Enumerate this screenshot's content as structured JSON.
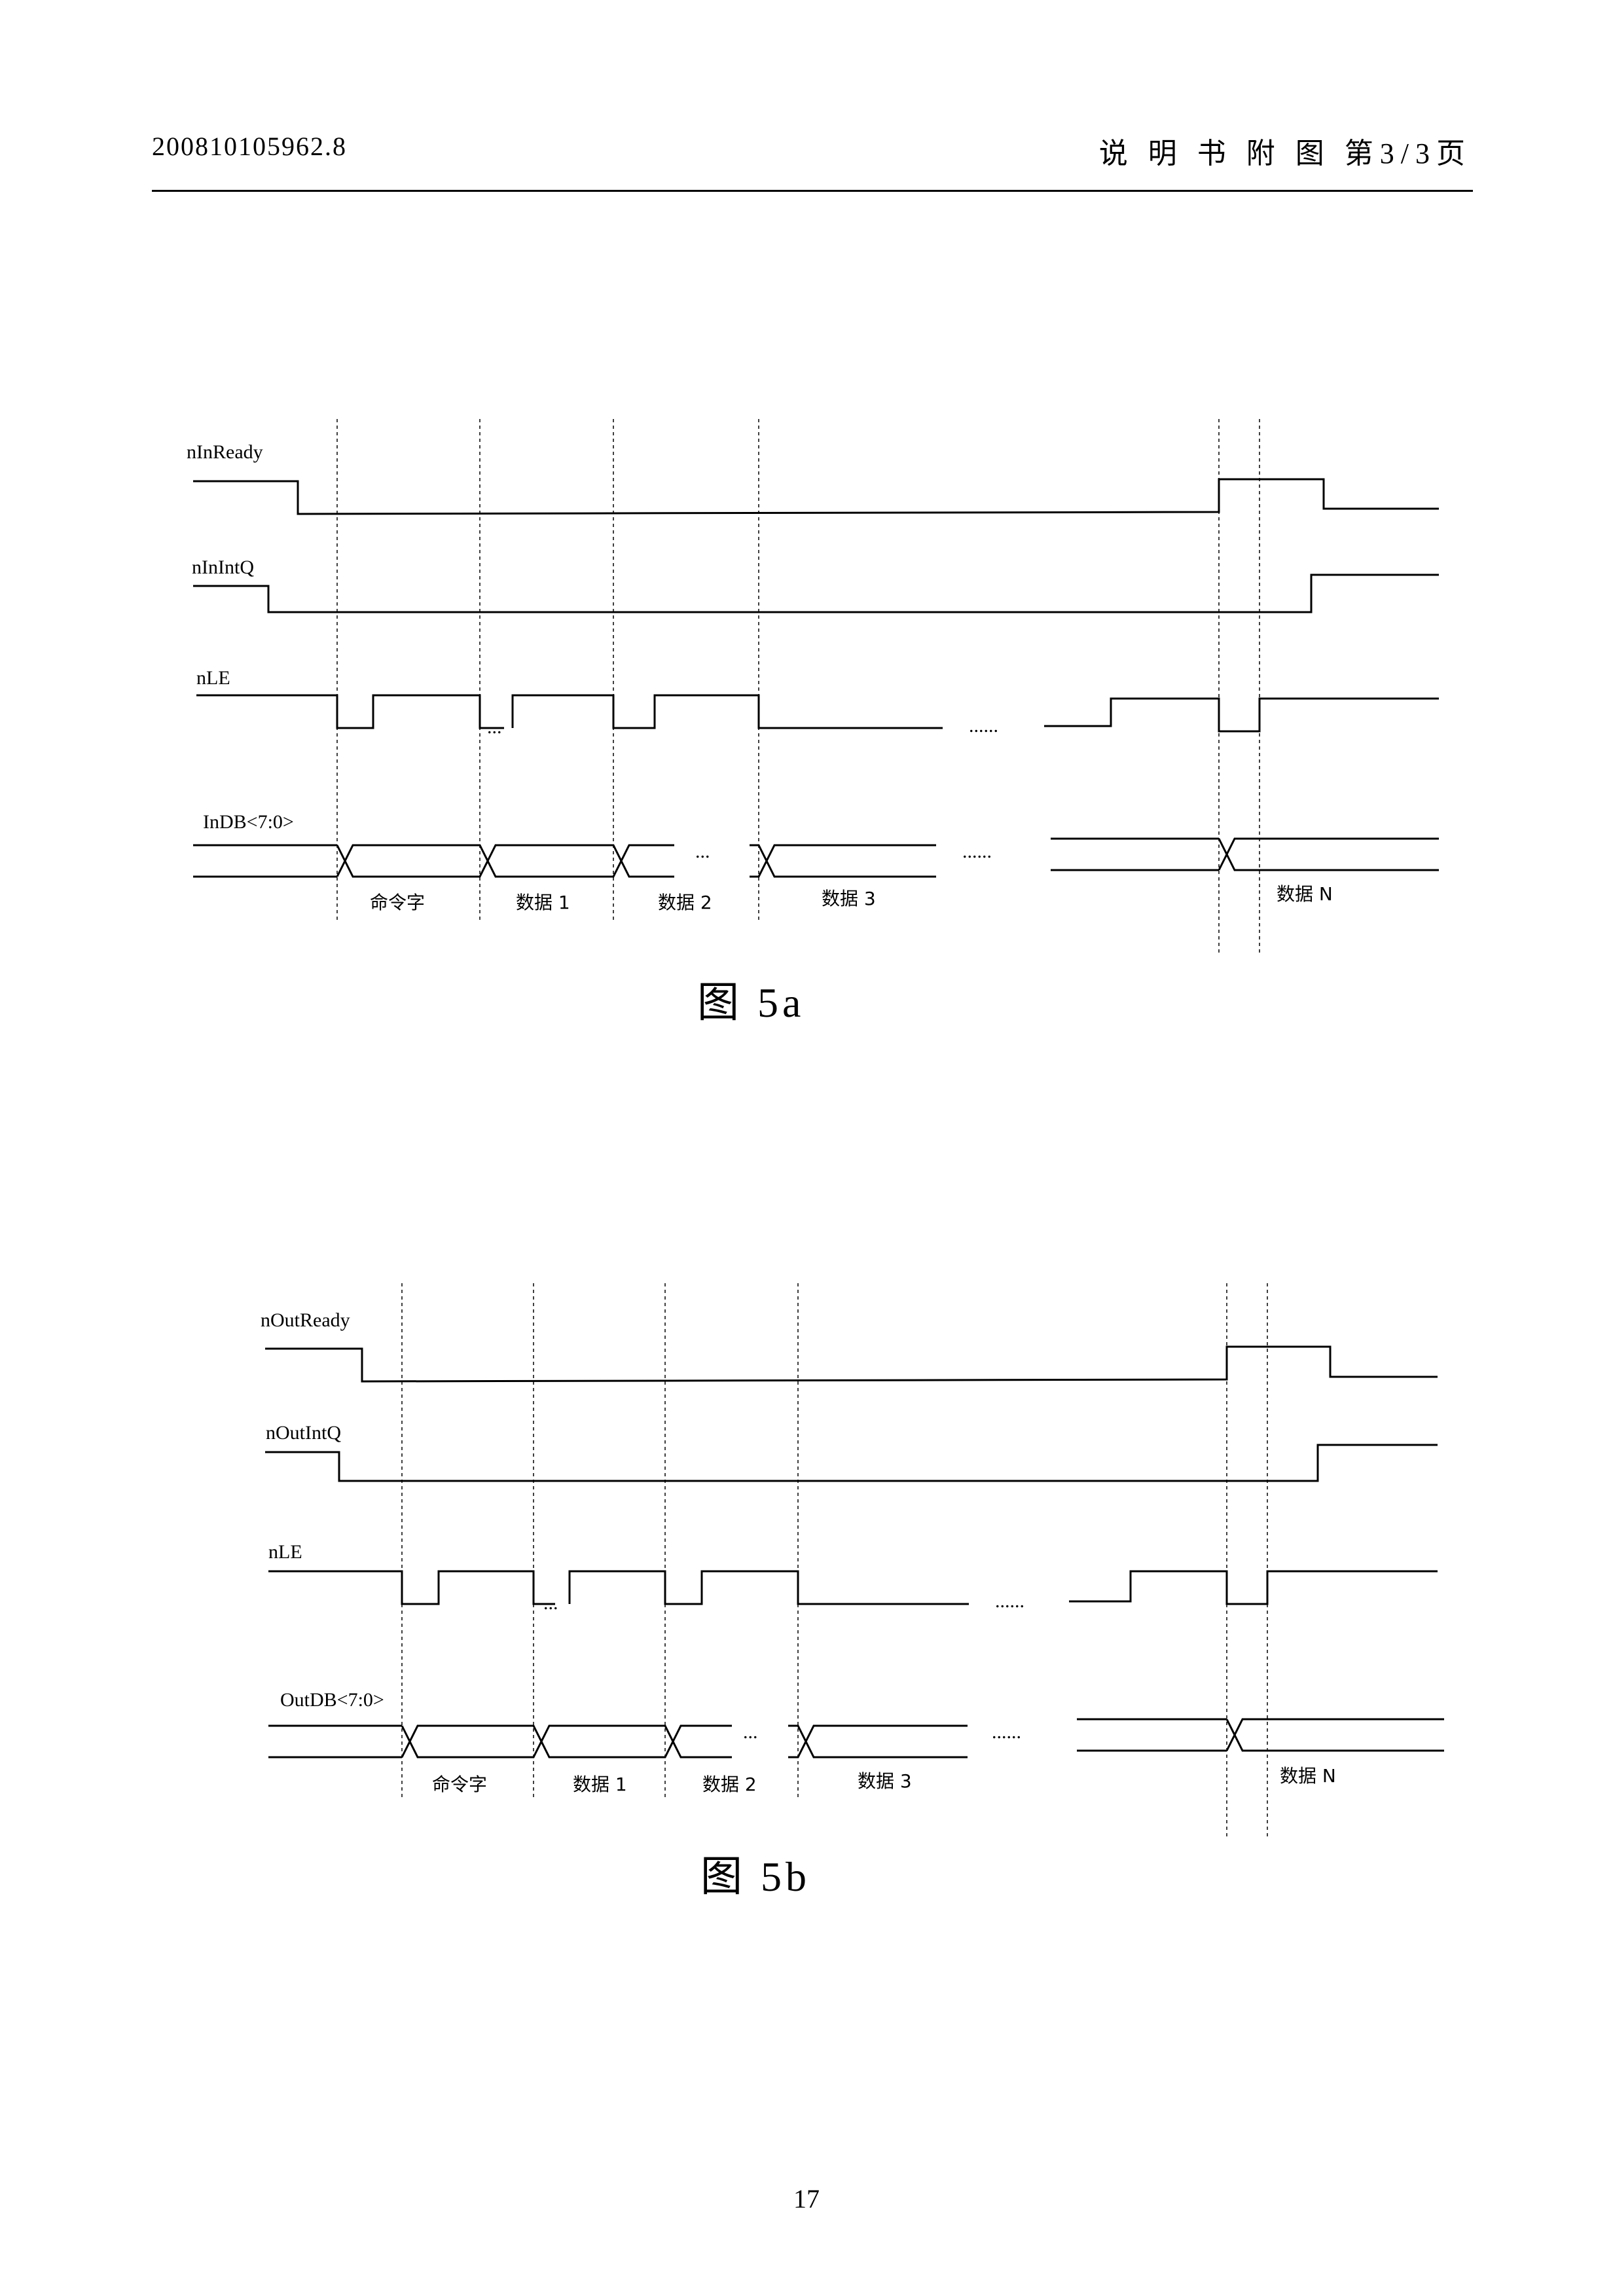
{
  "header": {
    "application_number": "200810105962.8",
    "title": "说 明 书 附 图 第3/3页"
  },
  "figures": [
    {
      "caption": "图 5a",
      "signals": {
        "ready": "nInReady",
        "intq": "nInIntQ",
        "le": "nLE",
        "db": "InDB<7:0>"
      },
      "segments": [
        "命令字",
        "数据 1",
        "数据 2",
        "数据 3",
        "数据 N"
      ],
      "ellipsis_short": "...",
      "ellipsis_long": "......"
    },
    {
      "caption": "图 5b",
      "signals": {
        "ready": "nOutReady",
        "intq": "nOutIntQ",
        "le": "nLE",
        "db": "OutDB<7:0>"
      },
      "segments": [
        "命令字",
        "数据 1",
        "数据 2",
        "数据 3",
        "数据 N"
      ],
      "ellipsis_short": "...",
      "ellipsis_long": "......"
    }
  ],
  "page_number": "17"
}
